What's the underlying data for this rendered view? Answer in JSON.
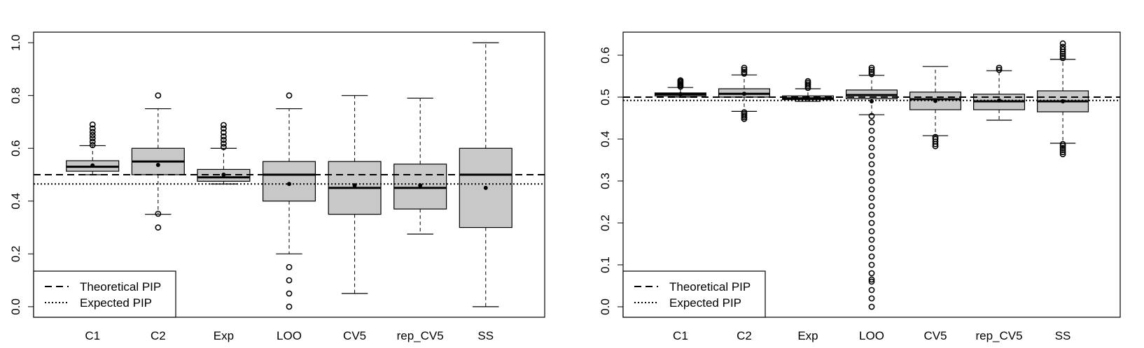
{
  "chart_data": [
    {
      "type": "box",
      "categories": [
        "C1",
        "C2",
        "Exp",
        "LOO",
        "CV5",
        "rep_CV5",
        "SS"
      ],
      "y_ticks": [
        "0.0",
        "0.2",
        "0.4",
        "0.6",
        "0.8",
        "1.0"
      ],
      "ylim": [
        -0.04,
        1.04
      ],
      "boxes": [
        {
          "whisker_low": 0.5,
          "q1": 0.513,
          "median": 0.53,
          "q3": 0.553,
          "whisker_high": 0.61,
          "mean": 0.535,
          "outliers_low": [],
          "outliers_high": [
            0.612,
            0.625,
            0.638,
            0.65,
            0.662,
            0.675,
            0.69
          ]
        },
        {
          "whisker_low": 0.35,
          "q1": 0.5,
          "median": 0.55,
          "q3": 0.6,
          "whisker_high": 0.75,
          "mean": 0.537,
          "outliers_low": [
            0.3,
            0.352
          ],
          "outliers_high": [
            0.8
          ]
        },
        {
          "whisker_low": 0.465,
          "q1": 0.475,
          "median": 0.49,
          "q3": 0.52,
          "whisker_high": 0.6,
          "mean": 0.5,
          "outliers_low": [],
          "outliers_high": [
            0.605,
            0.618,
            0.632,
            0.645,
            0.66,
            0.675,
            0.688
          ]
        },
        {
          "whisker_low": 0.2,
          "q1": 0.4,
          "median": 0.5,
          "q3": 0.55,
          "whisker_high": 0.75,
          "mean": 0.465,
          "outliers_low": [
            0.0,
            0.05,
            0.1,
            0.15
          ],
          "outliers_high": [
            0.8
          ]
        },
        {
          "whisker_low": 0.05,
          "q1": 0.35,
          "median": 0.45,
          "q3": 0.55,
          "whisker_high": 0.8,
          "mean": 0.46,
          "outliers_low": [],
          "outliers_high": []
        },
        {
          "whisker_low": 0.275,
          "q1": 0.37,
          "median": 0.45,
          "q3": 0.54,
          "whisker_high": 0.79,
          "mean": 0.46,
          "outliers_low": [],
          "outliers_high": []
        },
        {
          "whisker_low": 0.0,
          "q1": 0.3,
          "median": 0.5,
          "q3": 0.6,
          "whisker_high": 1.0,
          "mean": 0.45,
          "outliers_low": [],
          "outliers_high": []
        }
      ],
      "reference_lines": {
        "theoretical": 0.5,
        "expected": 0.465
      },
      "legend": {
        "position": "bottom-left",
        "entries": [
          "Theoretical PIP",
          "Expected PIP"
        ]
      }
    },
    {
      "type": "box",
      "categories": [
        "C1",
        "C2",
        "Exp",
        "LOO",
        "CV5",
        "rep_CV5",
        "SS"
      ],
      "y_ticks": [
        "0.0",
        "0.1",
        "0.2",
        "0.3",
        "0.4",
        "0.5",
        "0.6"
      ],
      "ylim": [
        -0.025,
        0.655
      ],
      "boxes": [
        {
          "whisker_low": 0.5,
          "q1": 0.503,
          "median": 0.507,
          "q3": 0.51,
          "whisker_high": 0.523,
          "mean": 0.507,
          "outliers_low": [],
          "outliers_high": [
            0.525,
            0.528,
            0.531,
            0.534,
            0.537,
            0.54
          ]
        },
        {
          "whisker_low": 0.466,
          "q1": 0.5,
          "median": 0.508,
          "q3": 0.52,
          "whisker_high": 0.553,
          "mean": 0.508,
          "outliers_low": [
            0.448,
            0.452,
            0.456,
            0.46,
            0.464
          ],
          "outliers_high": [
            0.556,
            0.56,
            0.565,
            0.57
          ]
        },
        {
          "whisker_low": 0.49,
          "q1": 0.494,
          "median": 0.497,
          "q3": 0.503,
          "whisker_high": 0.52,
          "mean": 0.498,
          "outliers_low": [],
          "outliers_high": [
            0.522,
            0.526,
            0.53,
            0.534,
            0.538
          ]
        },
        {
          "whisker_low": 0.458,
          "q1": 0.496,
          "median": 0.505,
          "q3": 0.517,
          "whisker_high": 0.552,
          "mean": 0.49,
          "outliers_low": [
            0.0,
            0.02,
            0.04,
            0.06,
            0.065,
            0.08,
            0.1,
            0.12,
            0.14,
            0.16,
            0.18,
            0.2,
            0.22,
            0.24,
            0.26,
            0.28,
            0.3,
            0.32,
            0.34,
            0.36,
            0.38,
            0.4,
            0.42,
            0.44,
            0.455
          ],
          "outliers_high": [
            0.555,
            0.56,
            0.565,
            0.57
          ]
        },
        {
          "whisker_low": 0.408,
          "q1": 0.47,
          "median": 0.495,
          "q3": 0.512,
          "whisker_high": 0.573,
          "mean": 0.491,
          "outliers_low": [
            0.383,
            0.388,
            0.394,
            0.4,
            0.405
          ],
          "outliers_high": []
        },
        {
          "whisker_low": 0.445,
          "q1": 0.47,
          "median": 0.49,
          "q3": 0.507,
          "whisker_high": 0.563,
          "mean": 0.492,
          "outliers_low": [],
          "outliers_high": [
            0.565,
            0.57
          ]
        },
        {
          "whisker_low": 0.39,
          "q1": 0.465,
          "median": 0.49,
          "q3": 0.515,
          "whisker_high": 0.59,
          "mean": 0.49,
          "outliers_low": [
            0.364,
            0.369,
            0.374,
            0.379,
            0.384,
            0.388
          ],
          "outliers_high": [
            0.593,
            0.598,
            0.603,
            0.608,
            0.614,
            0.62,
            0.628
          ]
        }
      ],
      "reference_lines": {
        "theoretical": 0.5,
        "expected": 0.492
      },
      "legend": {
        "position": "bottom-left",
        "entries": [
          "Theoretical PIP",
          "Expected PIP"
        ]
      }
    }
  ]
}
